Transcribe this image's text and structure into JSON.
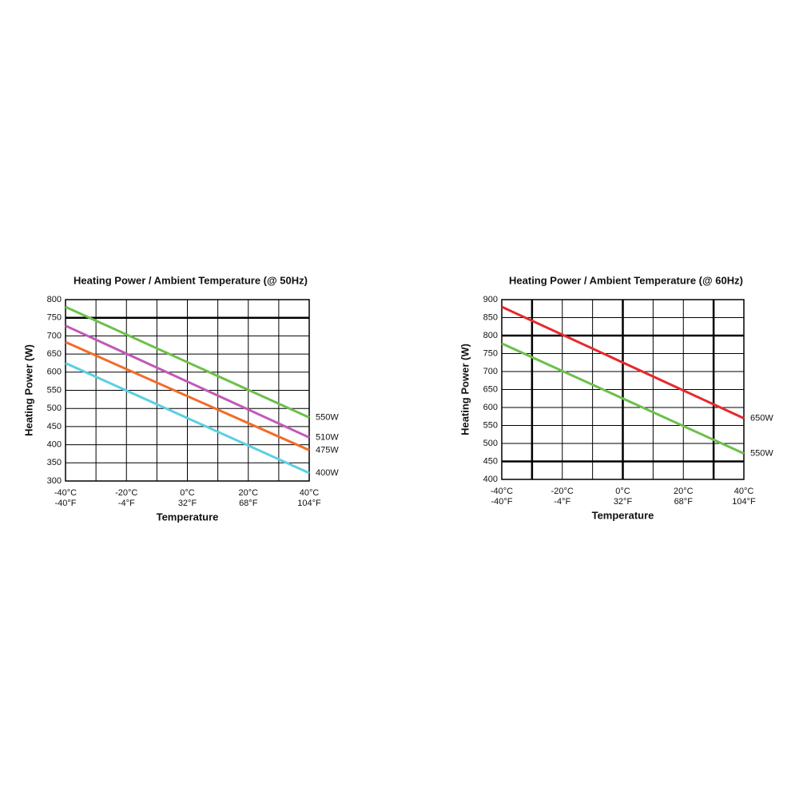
{
  "chart_data": [
    {
      "type": "line",
      "title": "Heating Power / Ambient Temperature (@ 50Hz)",
      "x_label": "Temperature",
      "y_label": "Heating Power (W)",
      "x": [
        -40,
        40
      ],
      "xlim": [
        -40,
        40
      ],
      "ylim": [
        300,
        800
      ],
      "xticks": [
        {
          "value": -40,
          "label": "-40°C"
        },
        {
          "value": -20,
          "label": "-20°C"
        },
        {
          "value": 0,
          "label": "0°C"
        },
        {
          "value": 20,
          "label": "20°C"
        },
        {
          "value": 40,
          "label": "40°C"
        }
      ],
      "xticks_secondary": [
        {
          "value": -40,
          "label": "-40°F"
        },
        {
          "value": -20,
          "label": "-4°F"
        },
        {
          "value": 0,
          "label": "32°F"
        },
        {
          "value": 20,
          "label": "68°F"
        },
        {
          "value": 40,
          "label": "104°F"
        }
      ],
      "yticks": [
        300,
        350,
        400,
        450,
        500,
        550,
        600,
        650,
        700,
        750,
        800
      ],
      "xgrid": [
        -40,
        -30,
        -20,
        -10,
        0,
        10,
        20,
        30,
        40
      ],
      "thick_y": [
        750
      ],
      "thick_x": [],
      "series": [
        {
          "name": "550W",
          "color": "#6cc04a",
          "values": [
            780,
            475
          ]
        },
        {
          "name": "510W",
          "color": "#c05ab8",
          "values": [
            728,
            420
          ]
        },
        {
          "name": "475W",
          "color": "#f26c2a",
          "values": [
            683,
            385
          ]
        },
        {
          "name": "400W",
          "color": "#5bcfe0",
          "values": [
            625,
            322
          ]
        }
      ]
    },
    {
      "type": "line",
      "title": "Heating Power / Ambient Temperature (@ 60Hz)",
      "x_label": "Temperature",
      "y_label": "Heating Power (W)",
      "x": [
        -40,
        40
      ],
      "xlim": [
        -40,
        40
      ],
      "ylim": [
        400,
        900
      ],
      "xticks": [
        {
          "value": -40,
          "label": "-40°C"
        },
        {
          "value": -20,
          "label": "-20°C"
        },
        {
          "value": 0,
          "label": "0°C"
        },
        {
          "value": 20,
          "label": "20°C"
        },
        {
          "value": 40,
          "label": "40°C"
        }
      ],
      "xticks_secondary": [
        {
          "value": -40,
          "label": "-40°F"
        },
        {
          "value": -20,
          "label": "-4°F"
        },
        {
          "value": 0,
          "label": "32°F"
        },
        {
          "value": 20,
          "label": "68°F"
        },
        {
          "value": 40,
          "label": "104°F"
        }
      ],
      "yticks": [
        400,
        450,
        500,
        550,
        600,
        650,
        700,
        750,
        800,
        850,
        900
      ],
      "xgrid": [
        -40,
        -30,
        -20,
        -10,
        0,
        10,
        20,
        30,
        40
      ],
      "thick_y": [
        800,
        450
      ],
      "thick_x": [
        -30,
        0,
        30
      ],
      "series": [
        {
          "name": "650W",
          "color": "#e8282b",
          "values": [
            880,
            570
          ]
        },
        {
          "name": "550W",
          "color": "#6cc04a",
          "values": [
            778,
            472
          ]
        }
      ]
    }
  ]
}
